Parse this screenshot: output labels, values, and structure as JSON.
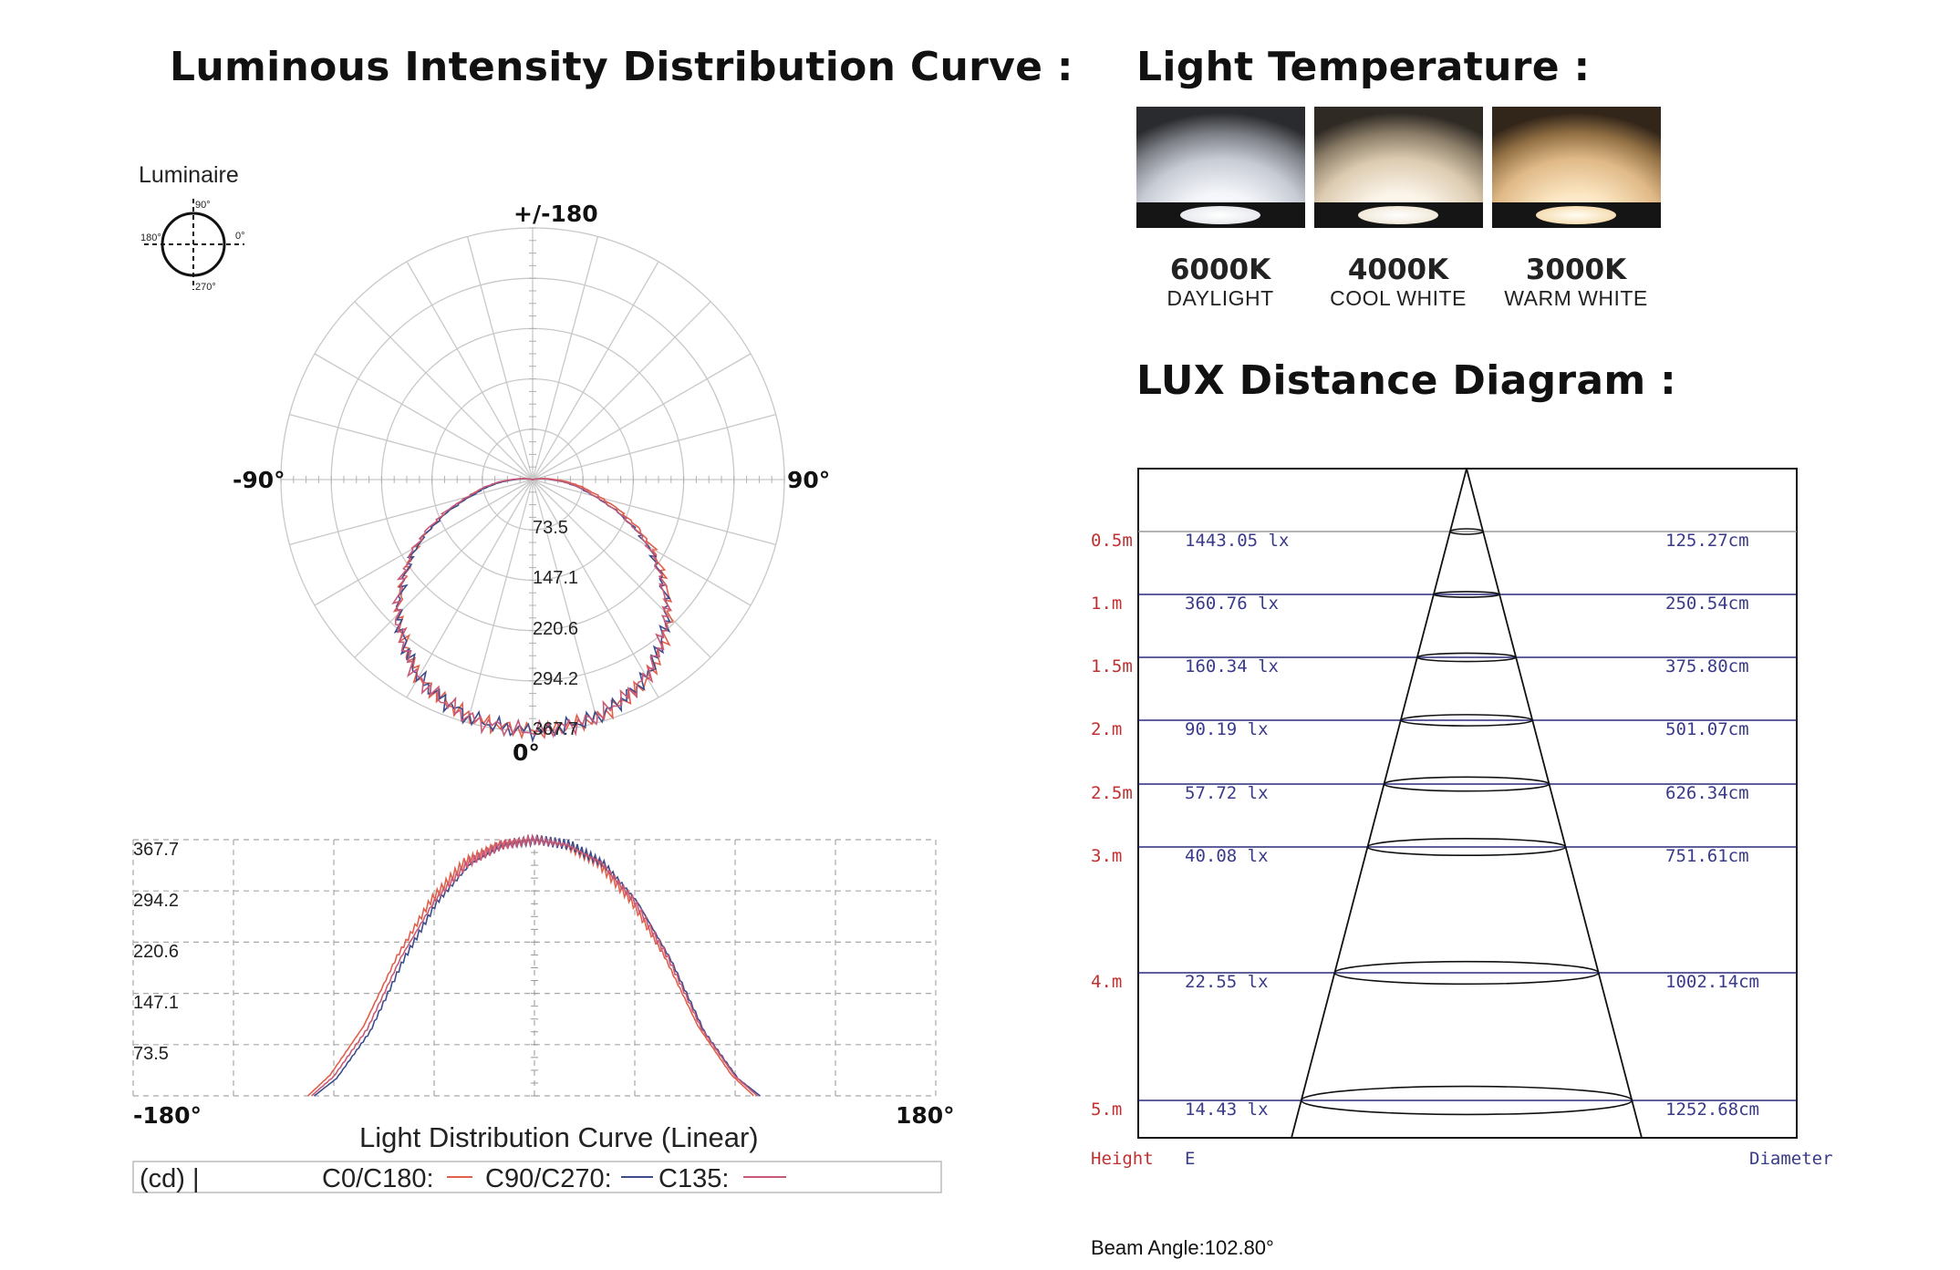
{
  "titles": {
    "lidc": "Luminous Intensity Distribution Curve :",
    "temp": "Light Temperature :",
    "lux": "LUX Distance Diagram :"
  },
  "polar": {
    "luminaire_label": "Luminaire",
    "icon_labels": [
      "90°",
      "180°",
      "0°",
      "270°"
    ],
    "angle_labels": {
      "top": "+/-180",
      "left": "-90°",
      "right": "90°",
      "bottom": "0°"
    },
    "rings": [
      "73.5",
      "147.1",
      "220.6",
      "294.2",
      "367.7"
    ]
  },
  "linear": {
    "y_ticks": [
      "367.7",
      "294.2",
      "220.6",
      "147.1",
      "73.5"
    ],
    "x_min": "-180°",
    "x_max": "180°",
    "caption": "Light Distribution Curve (Linear)",
    "legend": {
      "unit": "(cd) |",
      "items": [
        {
          "name": "C0/C180:",
          "color": "#e0604a"
        },
        {
          "name": "C90/C270:",
          "color": "#3c4c8c"
        },
        {
          "name": "C135:",
          "color": "#c85a78"
        }
      ]
    }
  },
  "temperatures": [
    {
      "kelvin": "6000K",
      "name": "DAYLIGHT"
    },
    {
      "kelvin": "4000K",
      "name": "COOL WHITE"
    },
    {
      "kelvin": "3000K",
      "name": "WARM WHITE"
    }
  ],
  "lux": {
    "rows": [
      {
        "height": "0.5m",
        "lux": "1443.05 lx",
        "diameter": "125.27cm"
      },
      {
        "height": "1.m",
        "lux": "360.76 lx",
        "diameter": "250.54cm"
      },
      {
        "height": "1.5m",
        "lux": "160.34 lx",
        "diameter": "375.80cm"
      },
      {
        "height": "2.m",
        "lux": "90.19 lx",
        "diameter": "501.07cm"
      },
      {
        "height": "2.5m",
        "lux": "57.72 lx",
        "diameter": "626.34cm"
      },
      {
        "height": "3.m",
        "lux": "40.08 lx",
        "diameter": "751.61cm"
      },
      {
        "height": "4.m",
        "lux": "22.55 lx",
        "diameter": "1002.14cm"
      },
      {
        "height": "5.m",
        "lux": "14.43 lx",
        "diameter": "1252.68cm"
      }
    ],
    "footer": {
      "height": "Height",
      "e": "E",
      "diameter": "Diameter"
    },
    "height_color": "#c03030",
    "value_color": "#3a3a8a",
    "beam_angle": "Beam Angle:102.80°"
  },
  "chart_data": {
    "type": "line",
    "title": "Light Distribution Curve (Linear)",
    "x_range": [
      -180,
      180
    ],
    "ylim": [
      0,
      367.7
    ],
    "y_ticks": [
      73.5,
      147.1,
      220.6,
      294.2,
      367.7
    ],
    "series": [
      {
        "name": "C0/C180",
        "x": [
          -180,
          -100,
          -90,
          -75,
          -60,
          -45,
          -30,
          -15,
          0,
          15,
          30,
          45,
          60,
          75,
          90,
          100,
          180
        ],
        "values": [
          0,
          0,
          30,
          100,
          200,
          280,
          335,
          360,
          367.7,
          360,
          335,
          280,
          200,
          100,
          30,
          0,
          0
        ]
      },
      {
        "name": "C90/C270",
        "x": [
          -180,
          -100,
          -90,
          -75,
          -60,
          -45,
          -30,
          -15,
          0,
          15,
          30,
          45,
          60,
          75,
          90,
          100,
          180
        ],
        "values": [
          0,
          0,
          25,
          92,
          195,
          278,
          333,
          360,
          367.7,
          360,
          333,
          278,
          195,
          92,
          25,
          0,
          0
        ]
      },
      {
        "name": "C135",
        "x": [
          -180,
          -100,
          -90,
          -75,
          -60,
          -45,
          -30,
          -15,
          0,
          15,
          30,
          45,
          60,
          75,
          90,
          100,
          180
        ],
        "values": [
          0,
          0,
          28,
          96,
          198,
          279,
          334,
          360,
          367.7,
          360,
          334,
          279,
          198,
          96,
          28,
          0,
          0
        ]
      }
    ]
  }
}
